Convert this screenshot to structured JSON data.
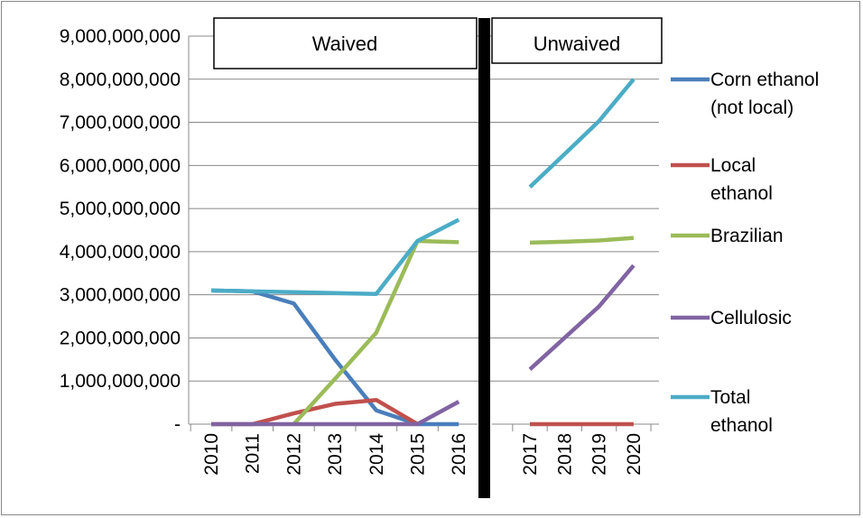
{
  "chart_data": {
    "type": "line",
    "ylim": [
      0,
      9000000000
    ],
    "yticks": [
      0,
      1000000000,
      2000000000,
      3000000000,
      4000000000,
      5000000000,
      6000000000,
      7000000000,
      8000000000,
      9000000000
    ],
    "ytick_labels": [
      "-",
      "1,000,000,000",
      "2,000,000,000",
      "3,000,000,000",
      "4,000,000,000",
      "5,000,000,000",
      "6,000,000,000",
      "7,000,000,000",
      "8,000,000,000",
      "9,000,000,000"
    ],
    "grid": true,
    "legend": "right",
    "panels": [
      {
        "label": "Waived",
        "x": [
          "2010",
          "2011",
          "2012",
          "2013",
          "2014",
          "2015",
          "2016"
        ],
        "series": [
          {
            "name": "Corn ethanol (not local)",
            "color": "#4a7ebb",
            "values": [
              3100000000,
              3080000000,
              2800000000,
              1500000000,
              320000000,
              0,
              0
            ]
          },
          {
            "name": "Local ethanol",
            "color": "#c0504d",
            "values": [
              0,
              0,
              250000000,
              470000000,
              560000000,
              0,
              null
            ]
          },
          {
            "name": "Brazilian",
            "color": "#9bbb59",
            "values": [
              null,
              null,
              0,
              1050000000,
              2120000000,
              4250000000,
              4220000000
            ]
          },
          {
            "name": "Cellulosic",
            "color": "#8064a2",
            "values": [
              0,
              0,
              0,
              0,
              0,
              0,
              520000000
            ]
          },
          {
            "name": "Total ethanol",
            "color": "#4bacc6",
            "values": [
              3100000000,
              3080000000,
              3060000000,
              3040000000,
              3020000000,
              4250000000,
              4740000000
            ]
          }
        ]
      },
      {
        "label": "Unwaived",
        "x": [
          "2017",
          "2018",
          "2019",
          "2020"
        ],
        "series": [
          {
            "name": "Corn ethanol (not local)",
            "color": "#4a7ebb",
            "values": [
              null,
              null,
              null,
              null
            ]
          },
          {
            "name": "Local ethanol",
            "color": "#c0504d",
            "values": [
              0,
              0,
              0,
              0
            ]
          },
          {
            "name": "Brazilian",
            "color": "#9bbb59",
            "values": [
              4210000000,
              4230000000,
              4260000000,
              4320000000
            ]
          },
          {
            "name": "Cellulosic",
            "color": "#8064a2",
            "values": [
              1270000000,
              2000000000,
              2730000000,
              3680000000
            ]
          },
          {
            "name": "Total ethanol",
            "color": "#4bacc6",
            "values": [
              5500000000,
              6260000000,
              7030000000,
              8000000000
            ]
          }
        ]
      }
    ],
    "legend_entries": [
      {
        "lines": [
          "Corn ethanol",
          "(not local)"
        ],
        "color": "#4a7ebb"
      },
      {
        "lines": [
          "Local",
          "ethanol"
        ],
        "color": "#c0504d"
      },
      {
        "lines": [
          "Brazilian"
        ],
        "color": "#9bbb59"
      },
      {
        "lines": [
          "Cellulosic"
        ],
        "color": "#8064a2"
      },
      {
        "lines": [
          "Total",
          "ethanol"
        ],
        "color": "#4bacc6"
      }
    ]
  }
}
